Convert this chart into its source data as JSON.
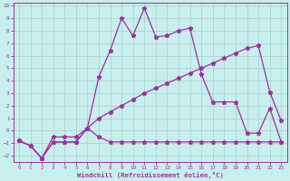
{
  "xlabel": "Windchill (Refroidissement éolien,°C)",
  "background_color": "#c8eeee",
  "grid_color": "#aacccc",
  "line_color": "#993399",
  "xlim": [
    -0.5,
    23.5
  ],
  "ylim": [
    -2.5,
    10.2
  ],
  "yticks": [
    -2,
    -1,
    0,
    1,
    2,
    3,
    4,
    5,
    6,
    7,
    8,
    9,
    10
  ],
  "xticks": [
    0,
    1,
    2,
    3,
    4,
    5,
    6,
    7,
    8,
    9,
    10,
    11,
    12,
    13,
    14,
    15,
    16,
    17,
    18,
    19,
    20,
    21,
    22,
    23
  ],
  "curve1_x": [
    0,
    1,
    2,
    3,
    4,
    5,
    6,
    7,
    8,
    9,
    10,
    11,
    12,
    13,
    14,
    15,
    16,
    17,
    18,
    19,
    20,
    21,
    22,
    23
  ],
  "curve1_y": [
    -0.8,
    -1.2,
    -2.2,
    -0.9,
    -0.9,
    -0.9,
    0.2,
    -0.5,
    -0.9,
    -0.9,
    -0.9,
    -0.9,
    -0.9,
    -0.9,
    -0.9,
    -0.9,
    -0.9,
    -0.9,
    -0.9,
    -0.9,
    -0.9,
    -0.9,
    -0.9,
    -0.9
  ],
  "curve2_x": [
    0,
    1,
    2,
    3,
    4,
    5,
    6,
    7,
    8,
    9,
    10,
    11,
    12,
    13,
    14,
    15,
    16,
    17,
    18,
    19,
    20,
    21,
    22,
    23
  ],
  "curve2_y": [
    -0.8,
    -1.2,
    -2.2,
    -0.9,
    -0.9,
    -0.9,
    0.2,
    4.3,
    6.4,
    9.0,
    7.6,
    9.8,
    7.5,
    7.6,
    8.0,
    8.2,
    4.5,
    2.3,
    2.3,
    2.3,
    -0.2,
    -0.2,
    1.8,
    -0.9
  ],
  "curve3_x": [
    0,
    1,
    2,
    3,
    4,
    5,
    6,
    7,
    8,
    9,
    10,
    11,
    12,
    13,
    14,
    15,
    16,
    17,
    18,
    19,
    20,
    21,
    22,
    23
  ],
  "curve3_y": [
    -0.8,
    -1.2,
    -2.2,
    -0.5,
    -0.5,
    -0.5,
    0.2,
    1.0,
    1.5,
    2.0,
    2.5,
    3.0,
    3.4,
    3.8,
    4.2,
    4.6,
    5.0,
    5.4,
    5.8,
    6.2,
    6.6,
    6.8,
    3.1,
    0.8
  ]
}
